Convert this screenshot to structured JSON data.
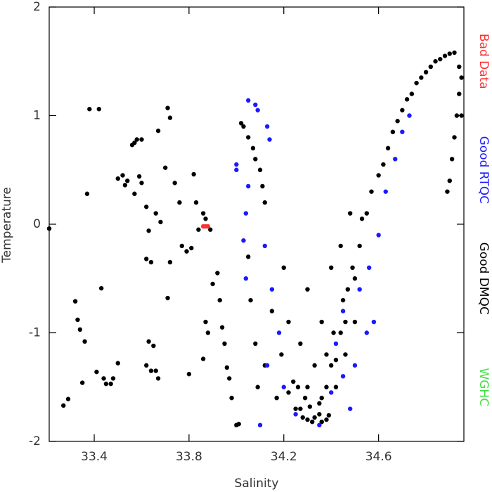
{
  "chart_data": {
    "type": "scatter",
    "x_label": "Salinity",
    "y_label": "Temperature",
    "xlim": [
      33.21,
      34.96
    ],
    "ylim": [
      -2,
      2
    ],
    "xticks": [
      33.4,
      33.8,
      34.2,
      34.6
    ],
    "yticks": [
      -2,
      -1,
      0,
      1,
      2
    ],
    "legend_position": "right",
    "series": [
      {
        "name": "Bad Data",
        "color": "#ff3030",
        "x": [
          33.86,
          33.87,
          33.88
        ],
        "y": [
          -0.02,
          -0.02,
          -0.02
        ]
      },
      {
        "name": "Good RTQC",
        "color": "#1a1aff",
        "x": [
          34.05,
          34.08,
          34.09,
          34.13,
          34.14,
          34.0,
          34.0,
          34.05,
          34.04,
          34.03,
          34.04,
          34.12,
          34.15,
          34.18,
          34.13,
          34.2,
          34.1,
          34.25,
          34.35,
          34.4,
          34.45,
          34.48,
          34.52,
          34.56,
          34.6,
          34.63,
          34.67,
          34.7,
          34.73,
          34.45,
          34.42,
          34.5,
          34.58,
          34.55
        ],
        "y": [
          1.14,
          1.1,
          1.05,
          0.9,
          0.78,
          0.55,
          0.5,
          0.35,
          0.1,
          -0.15,
          -0.5,
          -0.2,
          -0.6,
          -1.0,
          -1.3,
          -1.5,
          -1.85,
          -1.75,
          -1.85,
          -1.55,
          -1.4,
          -1.7,
          -0.6,
          -0.4,
          -0.1,
          0.3,
          0.6,
          0.85,
          1.0,
          -0.8,
          -1.1,
          -1.3,
          -0.9,
          -1.0
        ]
      },
      {
        "name": "Good DMQC",
        "color": "#000000",
        "x": [
          33.21,
          33.27,
          33.29,
          33.32,
          33.33,
          33.34,
          33.35,
          33.36,
          33.37,
          33.38,
          33.42,
          33.43,
          33.41,
          33.44,
          33.45,
          33.47,
          33.48,
          33.5,
          33.5,
          33.52,
          33.53,
          33.54,
          33.56,
          33.57,
          33.58,
          33.6,
          33.57,
          33.59,
          33.6,
          33.62,
          33.63,
          33.62,
          33.64,
          33.63,
          33.65,
          33.62,
          33.64,
          33.66,
          33.67,
          33.66,
          33.68,
          33.67,
          33.7,
          33.71,
          33.72,
          33.72,
          33.71,
          33.74,
          33.76,
          33.77,
          33.79,
          33.81,
          33.8,
          33.82,
          33.83,
          33.84,
          33.86,
          33.87,
          33.89,
          33.9,
          33.87,
          33.88,
          33.86,
          33.92,
          33.93,
          33.94,
          33.95,
          33.96,
          33.97,
          33.98,
          34.0,
          34.01,
          34.02,
          34.03,
          34.05,
          34.07,
          34.08,
          34.1,
          34.11,
          34.12,
          34.05,
          34.06,
          34.08,
          34.09,
          34.12,
          34.15,
          34.17,
          34.19,
          34.2,
          34.22,
          34.24,
          34.25,
          34.27,
          34.28,
          34.3,
          34.3,
          34.32,
          34.33,
          34.35,
          34.36,
          34.38,
          34.38,
          34.4,
          34.41,
          34.42,
          34.44,
          34.45,
          34.46,
          34.48,
          34.49,
          34.5,
          34.36,
          34.38,
          34.4,
          34.42,
          34.44,
          34.46,
          34.47,
          34.5,
          34.52,
          34.53,
          34.55,
          34.57,
          34.6,
          34.62,
          34.64,
          34.66,
          34.68,
          34.7,
          34.72,
          34.74,
          34.76,
          34.78,
          34.8,
          34.82,
          34.84,
          34.86,
          34.88,
          34.9,
          34.92,
          34.94,
          34.94,
          34.93,
          34.92,
          34.91,
          34.9,
          34.89,
          34.95,
          34.95,
          34.3,
          34.33,
          34.36,
          34.39,
          34.27,
          34.31,
          34.35,
          34.29,
          34.22,
          34.26
        ],
        "y": [
          -0.04,
          -1.67,
          -1.61,
          -0.71,
          -0.88,
          -0.97,
          -1.46,
          -1.08,
          0.28,
          1.06,
          1.06,
          -0.59,
          -1.36,
          -1.42,
          -1.47,
          -1.47,
          -1.42,
          -1.28,
          0.42,
          0.45,
          0.36,
          0.4,
          0.73,
          0.75,
          0.78,
          0.78,
          0.28,
          0.44,
          0.38,
          0.16,
          -0.06,
          -0.32,
          -0.35,
          -1.08,
          -1.12,
          -1.3,
          -1.35,
          -1.35,
          -1.42,
          0.1,
          0.02,
          0.86,
          0.52,
          1.07,
          0.98,
          -0.35,
          -0.68,
          0.38,
          0.2,
          -0.2,
          -0.25,
          -0.22,
          -1.38,
          0.46,
          0.2,
          -0.05,
          0.1,
          0.05,
          -0.05,
          -0.55,
          -0.9,
          -1.0,
          -1.24,
          -0.45,
          -0.7,
          -0.95,
          -1.1,
          -1.32,
          -1.42,
          -1.6,
          -1.85,
          -1.84,
          0.93,
          0.9,
          0.8,
          0.7,
          0.6,
          0.5,
          0.35,
          0.2,
          -0.3,
          -0.7,
          -1.1,
          -1.5,
          -1.3,
          -0.8,
          -1.6,
          -1.2,
          -0.4,
          -0.9,
          -1.45,
          -1.7,
          -1.1,
          -1.78,
          -0.6,
          -1.5,
          -1.82,
          -1.3,
          -1.75,
          -0.9,
          -1.2,
          -1.8,
          -0.4,
          -1.0,
          -1.5,
          -0.2,
          -0.7,
          -1.2,
          0.1,
          -0.4,
          -0.9,
          -1.6,
          -1.5,
          -1.3,
          -1.25,
          -1.0,
          -0.9,
          -0.6,
          -0.5,
          -0.2,
          0.05,
          0.1,
          0.3,
          0.45,
          0.55,
          0.7,
          0.85,
          0.95,
          1.05,
          1.15,
          1.2,
          1.3,
          1.35,
          1.4,
          1.45,
          1.5,
          1.52,
          1.55,
          1.57,
          1.58,
          1.45,
          1.2,
          1.0,
          0.8,
          0.6,
          0.4,
          0.3,
          1.35,
          1.0,
          -1.8,
          -1.78,
          -1.82,
          -1.76,
          -1.7,
          -1.68,
          -1.65,
          -1.6,
          -1.55,
          -1.5
        ]
      },
      {
        "name": "WGHC",
        "color": "#40e040",
        "x": [],
        "y": []
      }
    ]
  }
}
